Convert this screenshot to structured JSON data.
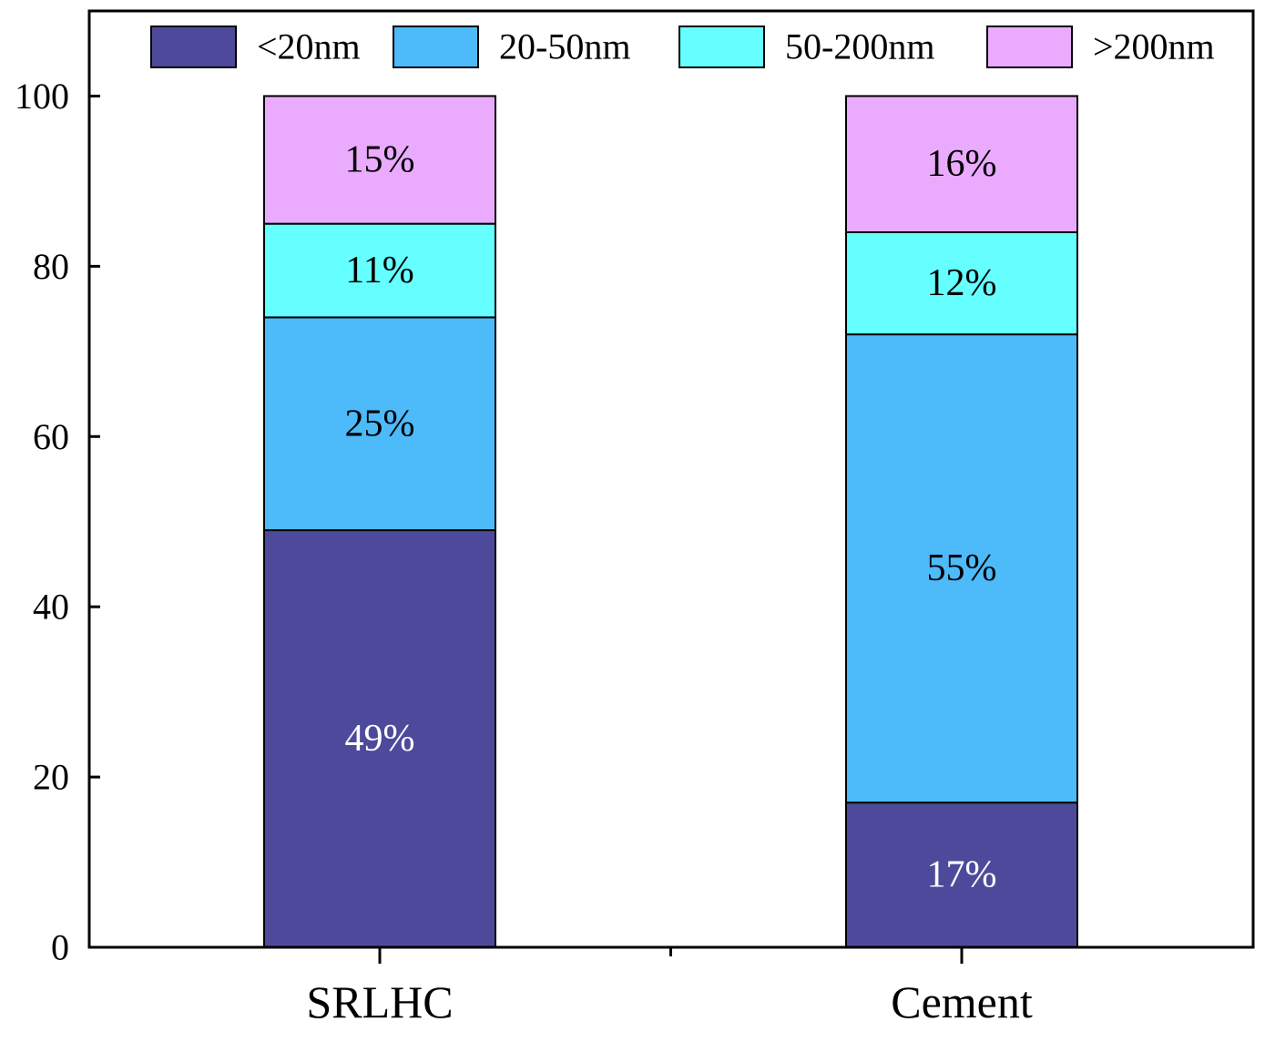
{
  "chart_data": {
    "type": "bar",
    "stacked": true,
    "categories": [
      "SRLHC",
      "Cement"
    ],
    "series": [
      {
        "name": "<20nm",
        "values": [
          49,
          17
        ],
        "labels": [
          "49%",
          "17%"
        ],
        "color": "#4e4a9b",
        "label_color": "#ffffff"
      },
      {
        "name": "20-50nm",
        "values": [
          25,
          55
        ],
        "labels": [
          "25%",
          "55%"
        ],
        "color": "#4dbafa",
        "label_color": "#000000"
      },
      {
        "name": "50-200nm",
        "values": [
          11,
          12
        ],
        "labels": [
          "11%",
          "12%"
        ],
        "color": "#66ffff",
        "label_color": "#000000"
      },
      {
        "name": ">200nm",
        "values": [
          15,
          16
        ],
        "labels": [
          "15%",
          "16%"
        ],
        "color": "#eaaafd",
        "label_color": "#000000"
      }
    ],
    "ylim": [
      0,
      110
    ],
    "yticks": [
      "0",
      "20",
      "40",
      "60",
      "80",
      "100"
    ],
    "legend_position": "top",
    "grid": false
  }
}
